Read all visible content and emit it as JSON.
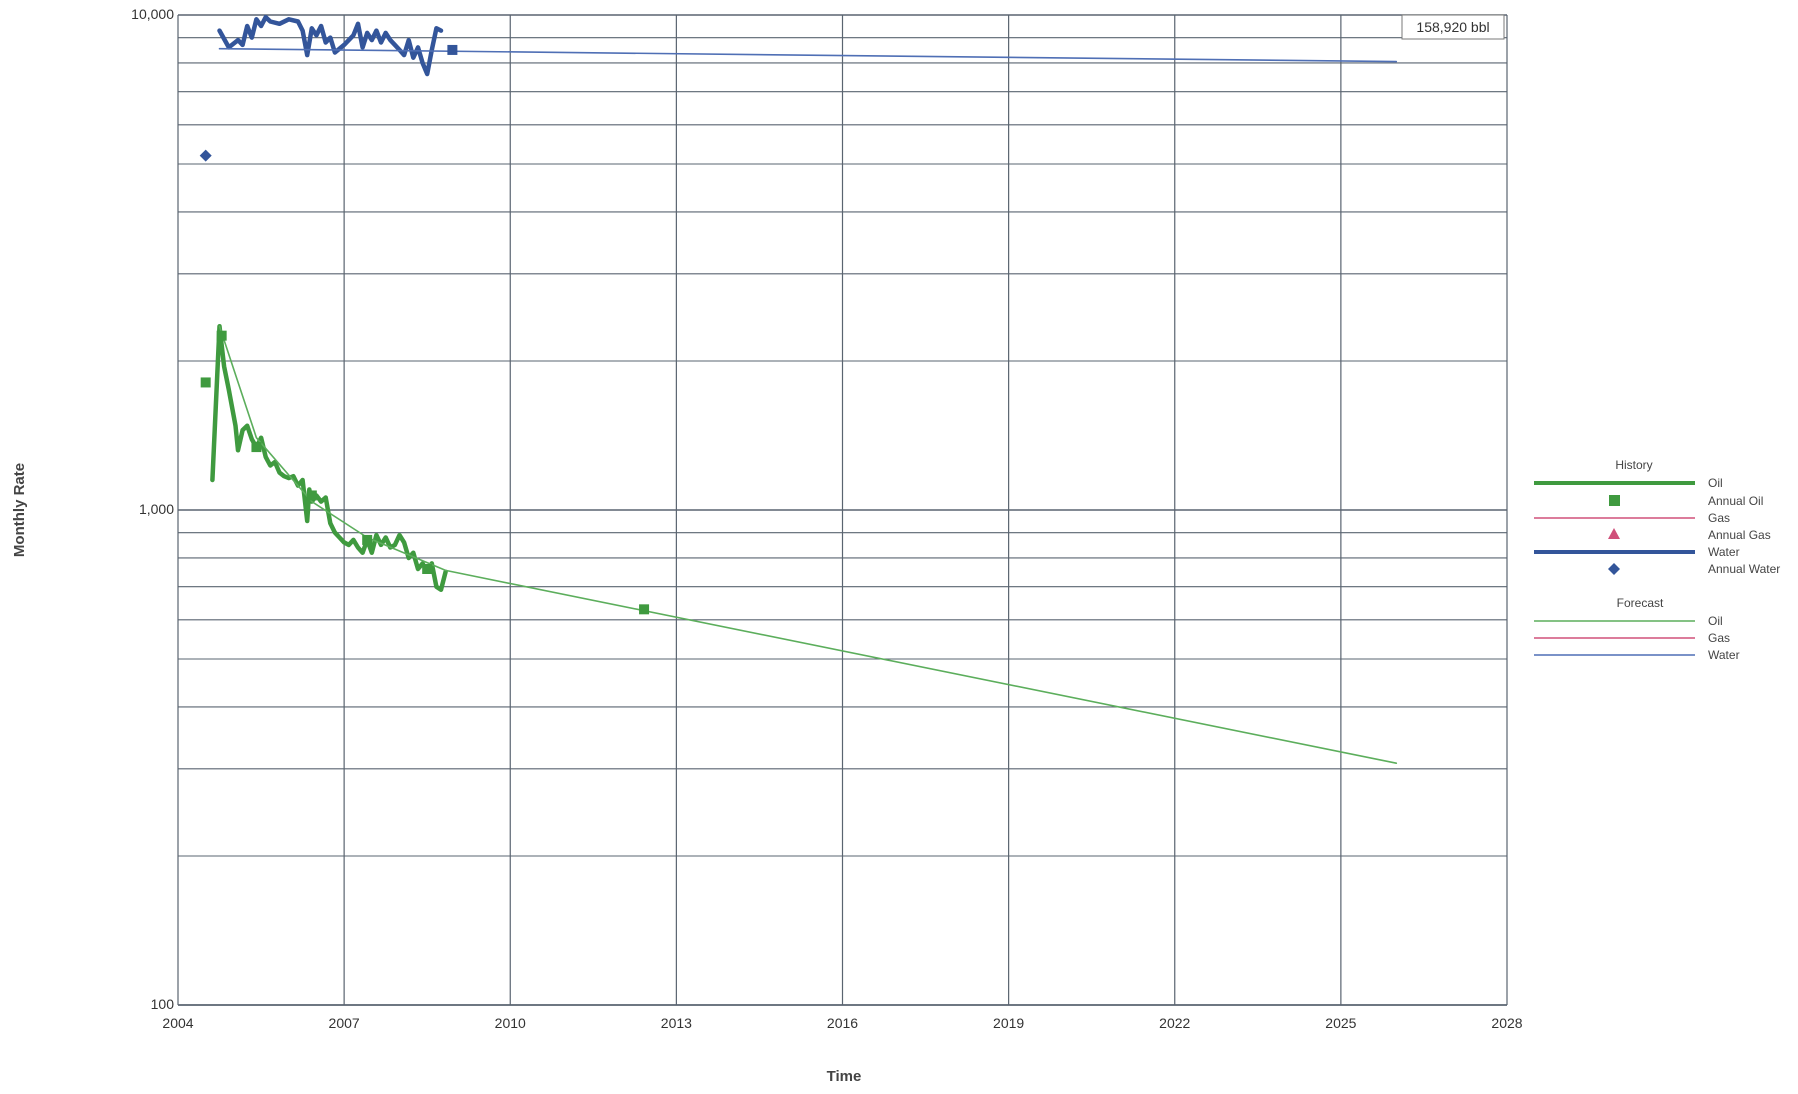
{
  "chart_data": {
    "type": "line",
    "xlabel": "Time",
    "ylabel": "Monthly Rate",
    "x_scale": "time",
    "y_scale": "log",
    "xlim": [
      "2004-01-01",
      "2028-01-01"
    ],
    "ylim": [
      100,
      10000
    ],
    "x_ticks": [
      "2004",
      "2007",
      "2010",
      "2013",
      "2016",
      "2019",
      "2022",
      "2025",
      "2028"
    ],
    "y_ticks": [
      "100",
      "1,000",
      "10,000"
    ],
    "y_tick_values": [
      100,
      1000,
      10000
    ],
    "grid": true,
    "cumulative_label": "158,920 bbl",
    "colors": {
      "oil": "#3f9a3f",
      "oil_forecast": "#5cae5c",
      "gas": "#d0507a",
      "water": "#33559a",
      "water_forecast": "#4f6fb5",
      "grid": "#5a6470"
    },
    "legend": {
      "placement": "right",
      "history_title": "History",
      "forecast_title": "Forecast",
      "history_items": [
        "Oil",
        "Annual Oil",
        "Gas",
        "Annual Gas",
        "Water",
        "Annual Water"
      ],
      "forecast_items": [
        "Oil",
        "Gas",
        "Water"
      ]
    },
    "series": [
      {
        "name": "Oil",
        "group": "History",
        "points": [
          [
            "2004-08-15",
            1150
          ],
          [
            "2004-10-01",
            2350
          ],
          [
            "2004-11-01",
            1950
          ],
          [
            "2004-12-01",
            1750
          ],
          [
            "2005-01-15",
            1480
          ],
          [
            "2005-02-01",
            1320
          ],
          [
            "2005-03-01",
            1450
          ],
          [
            "2005-04-01",
            1480
          ],
          [
            "2005-05-01",
            1390
          ],
          [
            "2005-06-01",
            1340
          ],
          [
            "2005-07-01",
            1400
          ],
          [
            "2005-08-01",
            1280
          ],
          [
            "2005-09-01",
            1230
          ],
          [
            "2005-10-01",
            1250
          ],
          [
            "2005-11-01",
            1190
          ],
          [
            "2005-12-01",
            1170
          ],
          [
            "2006-01-01",
            1160
          ],
          [
            "2006-02-01",
            1170
          ],
          [
            "2006-03-01",
            1120
          ],
          [
            "2006-04-01",
            1150
          ],
          [
            "2006-05-01",
            950
          ],
          [
            "2006-05-15",
            1100
          ],
          [
            "2006-06-01",
            1040
          ],
          [
            "2006-07-01",
            1070
          ],
          [
            "2006-08-01",
            1040
          ],
          [
            "2006-09-01",
            1060
          ],
          [
            "2006-10-01",
            940
          ],
          [
            "2006-11-01",
            900
          ],
          [
            "2006-12-01",
            880
          ],
          [
            "2007-01-01",
            860
          ],
          [
            "2007-02-01",
            850
          ],
          [
            "2007-03-01",
            870
          ],
          [
            "2007-04-01",
            840
          ],
          [
            "2007-05-01",
            820
          ],
          [
            "2007-06-01",
            870
          ],
          [
            "2007-07-01",
            820
          ],
          [
            "2007-08-01",
            890
          ],
          [
            "2007-09-01",
            850
          ],
          [
            "2007-10-01",
            880
          ],
          [
            "2007-11-01",
            840
          ],
          [
            "2007-12-01",
            850
          ],
          [
            "2008-01-01",
            890
          ],
          [
            "2008-02-01",
            860
          ],
          [
            "2008-03-01",
            800
          ],
          [
            "2008-04-01",
            820
          ],
          [
            "2008-05-01",
            760
          ],
          [
            "2008-06-01",
            780
          ],
          [
            "2008-07-01",
            750
          ],
          [
            "2008-08-01",
            780
          ],
          [
            "2008-09-01",
            700
          ],
          [
            "2008-10-01",
            690
          ],
          [
            "2008-11-01",
            750
          ]
        ]
      },
      {
        "name": "Annual Oil",
        "group": "History",
        "points": [
          [
            "2004-07-01",
            1810
          ],
          [
            "2005-06-01",
            1340
          ],
          [
            "2006-06-01",
            1070
          ],
          [
            "2007-06-01",
            870
          ],
          [
            "2008-07-01",
            760
          ],
          [
            "2012-06-01",
            630
          ]
        ]
      },
      {
        "name": "Water",
        "group": "History",
        "points": [
          [
            "2004-10-01",
            9300
          ],
          [
            "2004-12-01",
            8600
          ],
          [
            "2005-02-01",
            8900
          ],
          [
            "2005-03-01",
            8700
          ],
          [
            "2005-04-01",
            9500
          ],
          [
            "2005-05-01",
            9000
          ],
          [
            "2005-06-01",
            9800
          ],
          [
            "2005-07-01",
            9500
          ],
          [
            "2005-08-01",
            9900
          ],
          [
            "2005-09-01",
            9700
          ],
          [
            "2005-11-01",
            9600
          ],
          [
            "2006-01-01",
            9800
          ],
          [
            "2006-03-01",
            9700
          ],
          [
            "2006-04-01",
            9300
          ],
          [
            "2006-05-01",
            8300
          ],
          [
            "2006-06-01",
            9400
          ],
          [
            "2006-07-01",
            9100
          ],
          [
            "2006-08-01",
            9500
          ],
          [
            "2006-09-01",
            8800
          ],
          [
            "2006-10-01",
            9000
          ],
          [
            "2006-11-01",
            8400
          ],
          [
            "2007-01-01",
            8700
          ],
          [
            "2007-03-01",
            9100
          ],
          [
            "2007-04-01",
            9600
          ],
          [
            "2007-05-01",
            8600
          ],
          [
            "2007-06-01",
            9200
          ],
          [
            "2007-07-01",
            8900
          ],
          [
            "2007-08-01",
            9300
          ],
          [
            "2007-09-01",
            8800
          ],
          [
            "2007-10-01",
            9200
          ],
          [
            "2007-11-01",
            8900
          ],
          [
            "2007-12-01",
            8700
          ],
          [
            "2008-01-01",
            8500
          ],
          [
            "2008-02-01",
            8300
          ],
          [
            "2008-03-01",
            8900
          ],
          [
            "2008-04-01",
            8200
          ],
          [
            "2008-05-01",
            8600
          ],
          [
            "2008-06-01",
            8000
          ],
          [
            "2008-07-01",
            7600
          ],
          [
            "2008-08-01",
            8500
          ],
          [
            "2008-09-01",
            9400
          ],
          [
            "2008-10-01",
            9300
          ]
        ]
      },
      {
        "name": "Annual Water",
        "group": "History",
        "points": [
          [
            "2004-07-01",
            5200
          ]
        ]
      },
      {
        "name": "Oil",
        "group": "Forecast",
        "points": [
          [
            "2004-10-01",
            2350
          ],
          [
            "2005-06-01",
            1400
          ],
          [
            "2006-06-01",
            1040
          ],
          [
            "2007-06-01",
            880
          ],
          [
            "2008-11-01",
            755
          ],
          [
            "2026-01-01",
            308
          ]
        ]
      },
      {
        "name": "Water",
        "group": "Forecast",
        "points": [
          [
            "2004-10-01",
            8550
          ],
          [
            "2026-01-01",
            8050
          ]
        ]
      }
    ],
    "extra_points": [
      {
        "series": "Annual Oil",
        "x": "2004-10-15",
        "y": 2250
      },
      {
        "series": "Annual Water",
        "x": "2008-12-15",
        "y": 8500
      }
    ]
  }
}
